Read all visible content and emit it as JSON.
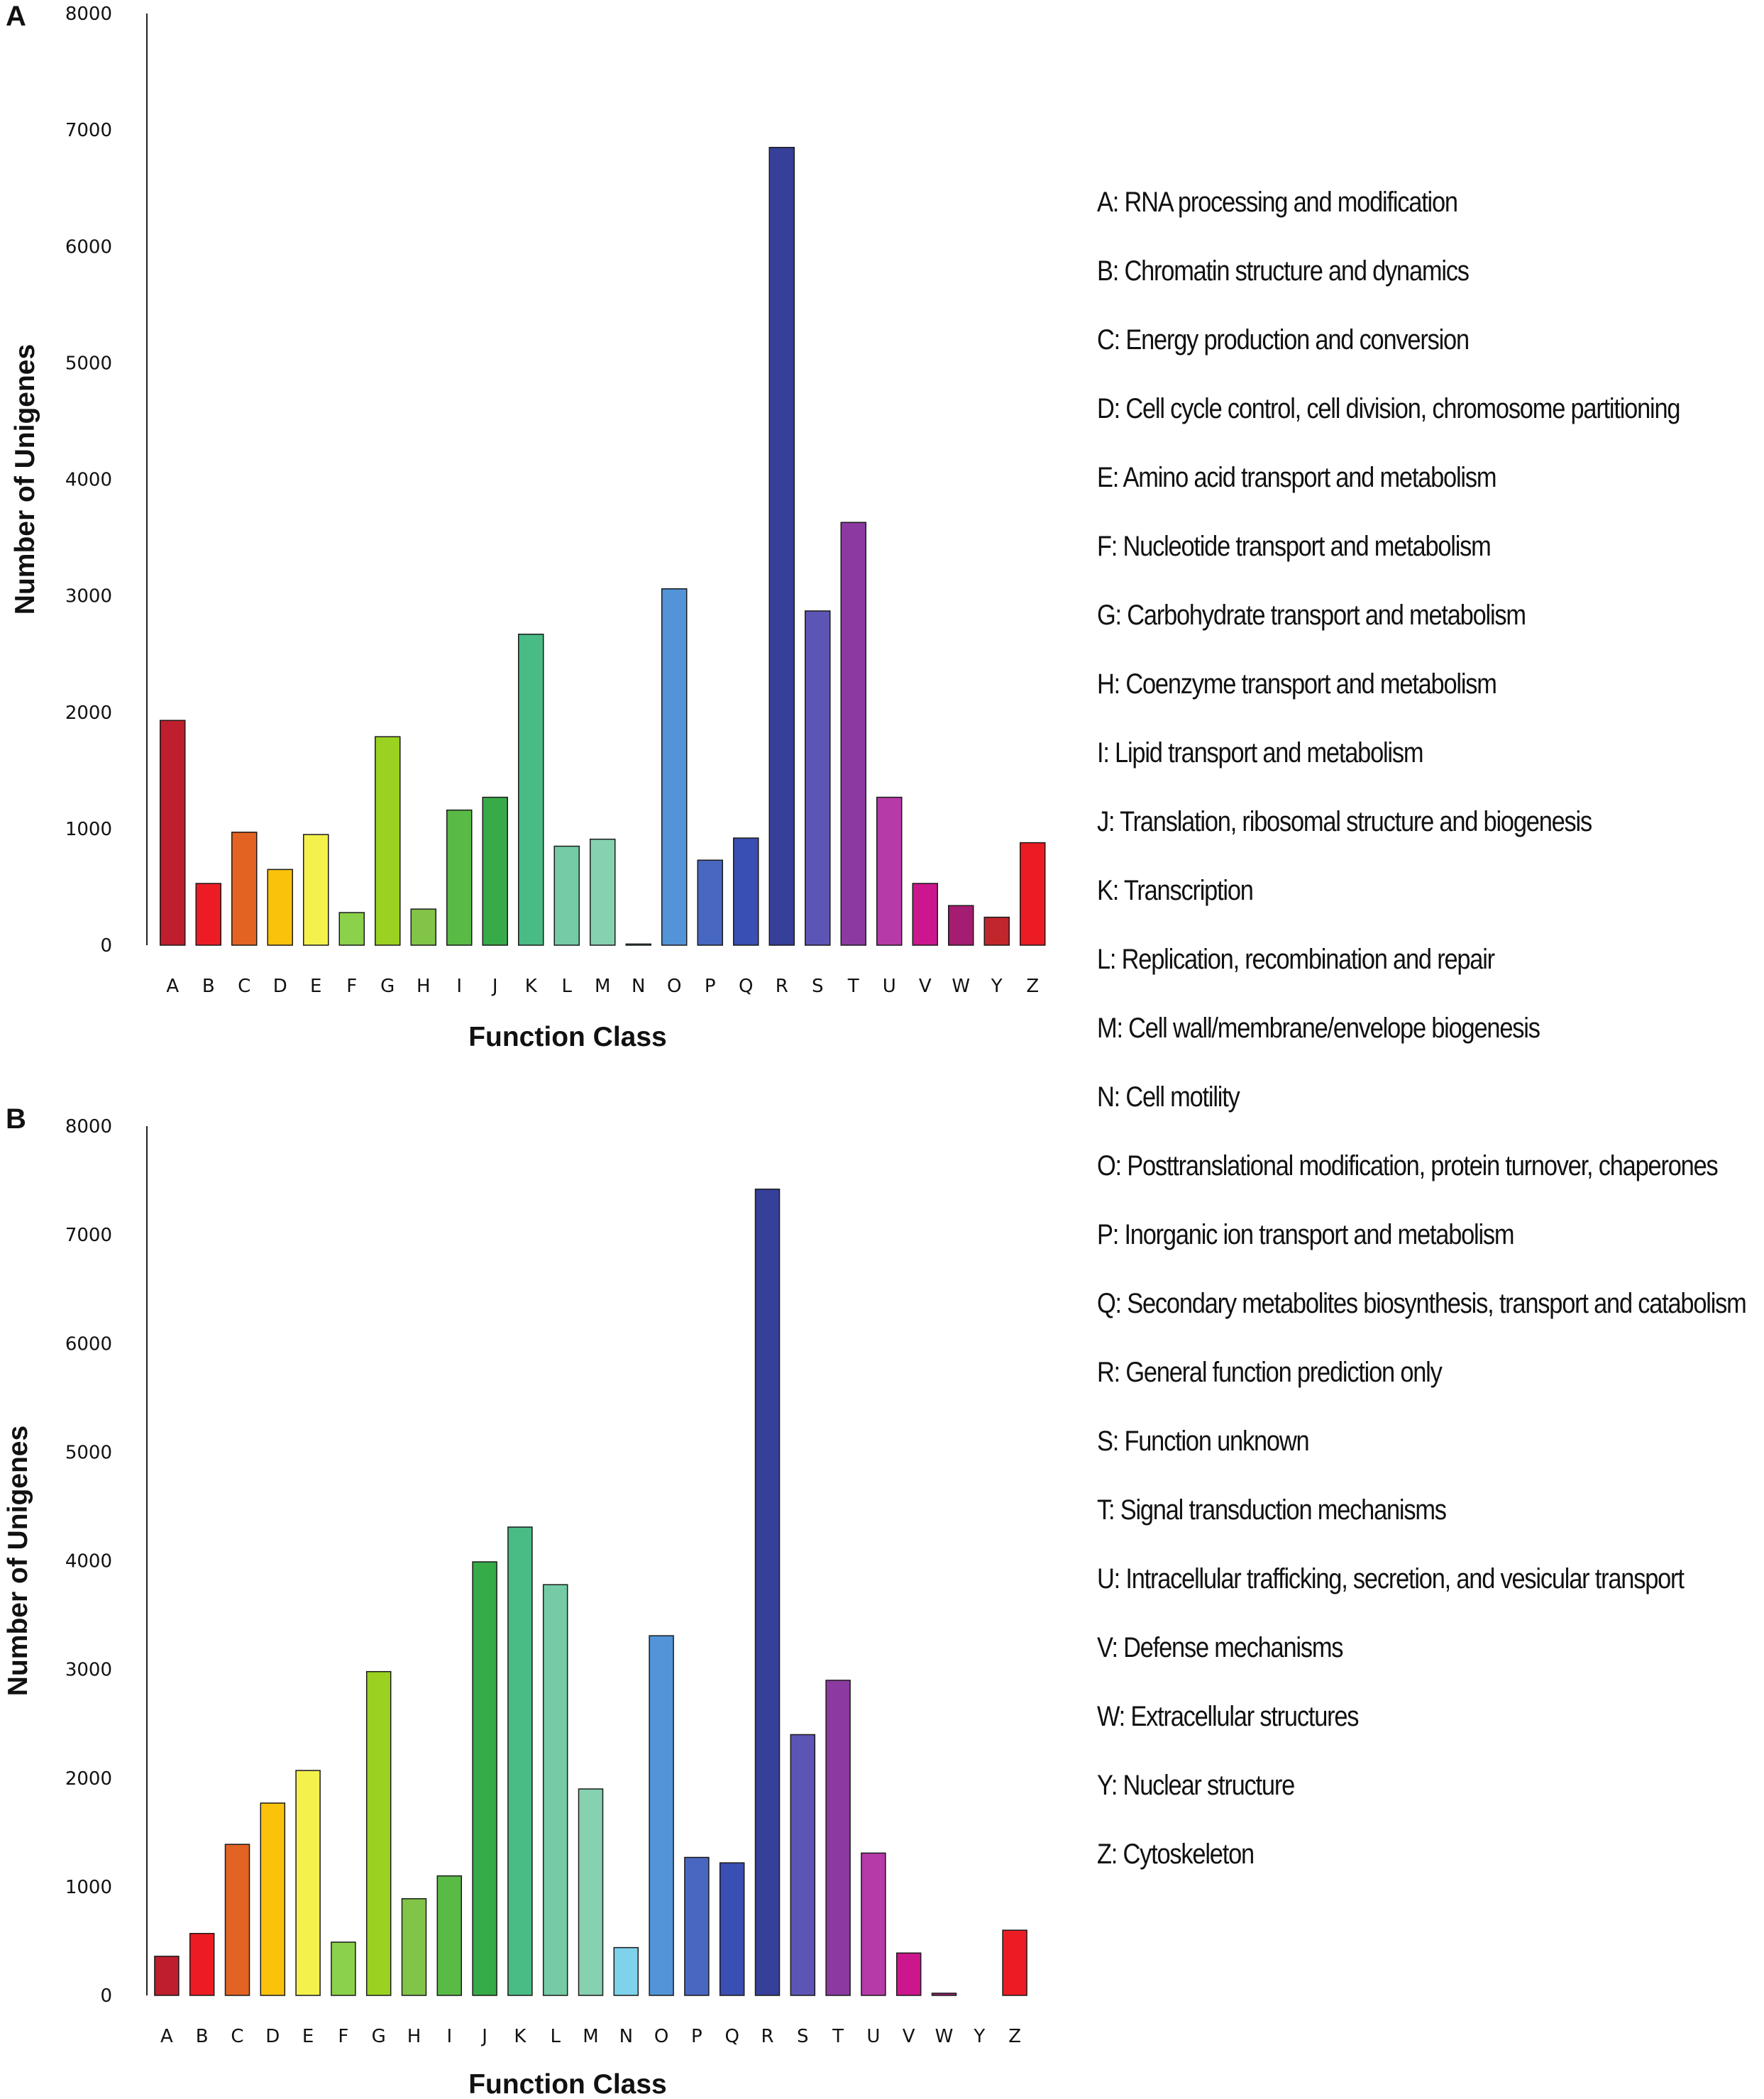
{
  "chart_data": [
    {
      "type": "bar",
      "panel_label": "A",
      "xlabel": "Function Class",
      "ylabel": "Number of Unigenes",
      "ylim": [
        0,
        8000
      ],
      "yticks": [
        "0",
        "1000",
        "2000",
        "3000",
        "4000",
        "5000",
        "6000",
        "7000",
        "8000"
      ],
      "categories": [
        "A",
        "B",
        "C",
        "D",
        "E",
        "F",
        "G",
        "H",
        "I",
        "J",
        "K",
        "L",
        "M",
        "N",
        "O",
        "P",
        "Q",
        "R",
        "S",
        "T",
        "U",
        "V",
        "W",
        "Y",
        "Z"
      ],
      "values": [
        1930,
        530,
        970,
        650,
        950,
        280,
        1790,
        310,
        1160,
        1270,
        2670,
        850,
        910,
        10,
        3060,
        730,
        920,
        6850,
        2870,
        3630,
        1270,
        530,
        340,
        240,
        880
      ]
    },
    {
      "type": "bar",
      "panel_label": "B",
      "xlabel": "Function Class",
      "ylabel": "Number of Unigenes",
      "ylim": [
        0,
        8000
      ],
      "yticks": [
        "0",
        "1000",
        "2000",
        "3000",
        "4000",
        "5000",
        "6000",
        "7000",
        "8000"
      ],
      "categories": [
        "A",
        "B",
        "C",
        "D",
        "E",
        "F",
        "G",
        "H",
        "I",
        "J",
        "K",
        "L",
        "M",
        "N",
        "O",
        "P",
        "Q",
        "R",
        "S",
        "T",
        "U",
        "V",
        "W",
        "Y",
        "Z"
      ],
      "values": [
        360,
        570,
        1390,
        1770,
        2070,
        490,
        2980,
        890,
        1100,
        3990,
        4310,
        3780,
        1900,
        440,
        3310,
        1270,
        1220,
        7420,
        2400,
        2900,
        1310,
        390,
        20,
        0,
        600
      ]
    }
  ],
  "colors": [
    "#be1e2d",
    "#ed1c24",
    "#e36323",
    "#fbc20c",
    "#f4f14d",
    "#8bd14b",
    "#9bd120",
    "#82c448",
    "#5aba46",
    "#36ab47",
    "#49bb85",
    "#74cba6",
    "#86d1b0",
    "#7fd2ec",
    "#5294d7",
    "#4767c0",
    "#3a4fb3",
    "#364099",
    "#5d55b5",
    "#8c3aa1",
    "#b63aa8",
    "#cc168e",
    "#a51d72",
    "#c2262d",
    "#ec1c24"
  ],
  "legend": [
    "A: RNA processing and modification",
    "B: Chromatin structure and dynamics",
    "C: Energy production and conversion",
    "D: Cell cycle control, cell division, chromosome partitioning",
    "E: Amino acid transport and metabolism",
    "F: Nucleotide transport and metabolism",
    "G: Carbohydrate transport and metabolism",
    "H: Coenzyme transport and metabolism",
    "I: Lipid transport and metabolism",
    "J: Translation, ribosomal structure and biogenesis",
    "K: Transcription",
    "L: Replication, recombination and repair",
    "M: Cell wall/membrane/envelope biogenesis",
    "N: Cell motility",
    "O: Posttranslational modification, protein turnover, chaperones",
    "P: Inorganic ion transport and metabolism",
    "Q: Secondary metabolites biosynthesis, transport and catabolism",
    "R: General function prediction only",
    "S: Function unknown",
    "T: Signal transduction mechanisms",
    "U: Intracellular trafficking, secretion, and vesicular transport",
    "V: Defense mechanisms",
    "W: Extracellular structures",
    "Y: Nuclear structure",
    "Z: Cytoskeleton"
  ]
}
